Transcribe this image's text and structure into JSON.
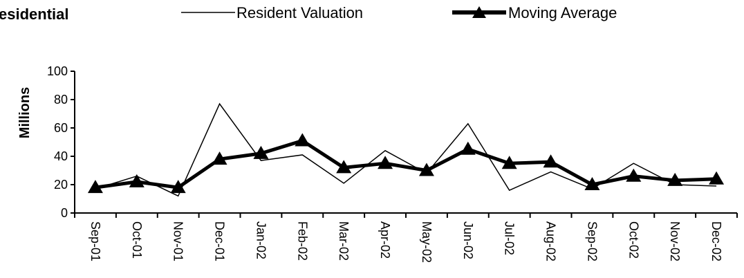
{
  "chart_data": {
    "type": "line",
    "title": "esidential",
    "ylabel": "Millions",
    "xlabel": "",
    "ylim": [
      0,
      100
    ],
    "yticks": [
      0,
      20,
      40,
      60,
      80,
      100
    ],
    "grid": false,
    "legend_position": "top",
    "categories": [
      "Sep-01",
      "Oct-01",
      "Nov-01",
      "Dec-01",
      "Jan-02",
      "Feb-02",
      "Mar-02",
      "Apr-02",
      "May-02",
      "Jun-02",
      "Jul-02",
      "Aug-02",
      "Sep-02",
      "Oct-02",
      "Nov-02",
      "Dec-02"
    ],
    "series": [
      {
        "name": "Resident Valuation",
        "color": "#000000",
        "style": "thin",
        "values": [
          17,
          26,
          12,
          77,
          37,
          41,
          21,
          44,
          28,
          63,
          16,
          29,
          17,
          35,
          20,
          19
        ]
      },
      {
        "name": "Moving Average",
        "color": "#000000",
        "style": "thick-triangle-markers",
        "values": [
          18,
          22,
          18,
          38,
          42,
          51,
          32,
          35,
          30,
          45,
          35,
          36,
          20,
          26,
          23,
          24
        ]
      }
    ]
  }
}
